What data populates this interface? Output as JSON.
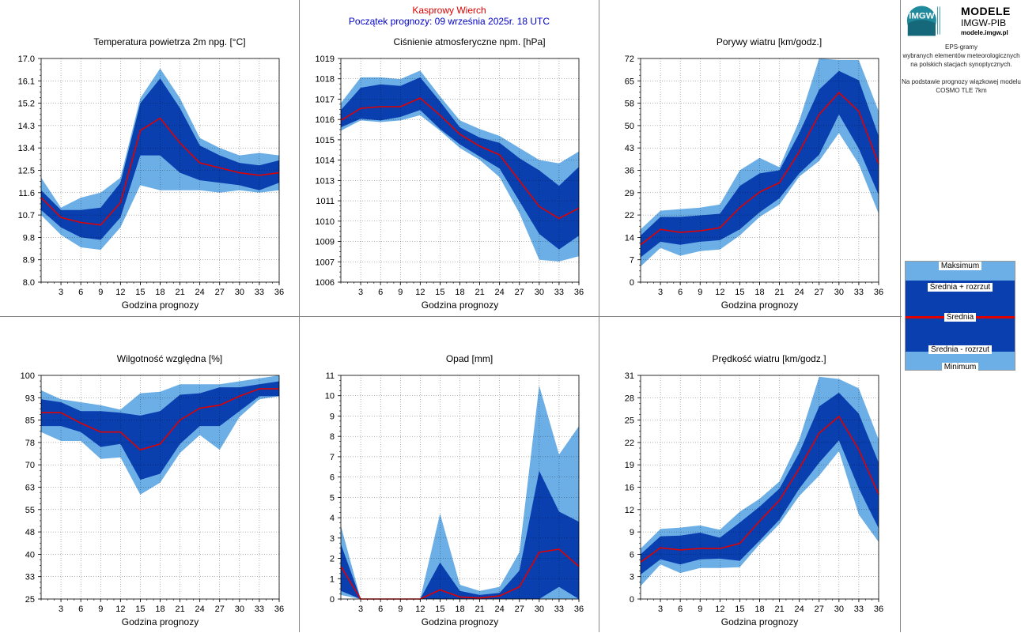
{
  "header": {
    "station": "Kasprowy Wierch",
    "forecast_start": "Początek prognozy: 09 września 2025r. 18 UTC"
  },
  "side": {
    "brand": "MODELE",
    "brand_sub": "IMGW-PIB",
    "url": "modele.imgw.pl",
    "logo_text": "IMGW",
    "desc1": "EPS-gramy",
    "desc2": "wybranych elementów meteorologicznych",
    "desc3": "na polskich stacjach  synoptycznych.",
    "desc4": "Na podstawie prognozy wiązkowej modelu",
    "desc5": "COSMO TLE 7km"
  },
  "legend": {
    "max": "Maksimum",
    "mean_plus": "Średnia + rozrzut",
    "mean": "Średnia",
    "mean_minus": "Średnia - rozrzut",
    "min": "Minimum"
  },
  "colors": {
    "outer_band": "#6caee6",
    "inner_band": "#0a3fb0",
    "mean_line": "#e00000",
    "header_station": "#e00000",
    "header_date": "#0000cc"
  },
  "chart_data": [
    {
      "type": "area",
      "title": "Temperatura powietrza 2m npg. [°C]",
      "xlabel": "Godzina prognozy",
      "x": [
        0,
        3,
        6,
        9,
        12,
        15,
        18,
        21,
        24,
        27,
        30,
        33,
        36
      ],
      "xticks": [
        "3",
        "6",
        "9",
        "12",
        "15",
        "18",
        "21",
        "24",
        "27",
        "30",
        "33",
        "36"
      ],
      "yticks": [
        "8.0",
        "8.9",
        "9.8",
        "10.7",
        "11.6",
        "12.5",
        "13.4",
        "14.3",
        "15.2",
        "16.1",
        "17.0"
      ],
      "ylim": [
        8.0,
        17.0
      ],
      "max": [
        12.2,
        11.0,
        11.4,
        11.6,
        12.2,
        15.4,
        16.6,
        15.4,
        13.8,
        13.4,
        13.1,
        13.2,
        13.1
      ],
      "mean_plus": [
        11.7,
        10.9,
        10.9,
        11.0,
        12.0,
        15.2,
        16.2,
        15.0,
        13.5,
        13.1,
        12.8,
        12.7,
        12.9
      ],
      "mean": [
        11.4,
        10.6,
        10.4,
        10.3,
        11.2,
        14.1,
        14.6,
        13.6,
        12.8,
        12.6,
        12.4,
        12.3,
        12.4
      ],
      "mean_minus": [
        10.9,
        10.2,
        9.8,
        9.7,
        10.6,
        13.1,
        13.1,
        12.4,
        12.1,
        12.0,
        11.9,
        11.7,
        12.0
      ],
      "min": [
        10.7,
        9.9,
        9.4,
        9.3,
        10.2,
        11.9,
        11.7,
        11.7,
        11.7,
        11.6,
        11.7,
        11.6,
        11.7
      ]
    },
    {
      "type": "area",
      "title": "Ciśnienie atmosferyczne npm. [hPa]",
      "xlabel": "Godzina prognozy",
      "x": [
        0,
        3,
        6,
        9,
        12,
        15,
        18,
        21,
        24,
        27,
        30,
        33,
        36
      ],
      "xticks": [
        "3",
        "6",
        "9",
        "12",
        "15",
        "18",
        "21",
        "24",
        "27",
        "30",
        "33",
        "36"
      ],
      "yticks": [
        "1006",
        "1007",
        "1009",
        "1010",
        "1011",
        "1013",
        "1014",
        "1015",
        "1016",
        "1017",
        "1018",
        "1019"
      ],
      "ylim": [
        1006,
        1019
      ],
      "max": [
        1016.4,
        1017.9,
        1017.9,
        1017.8,
        1018.3,
        1016.8,
        1015.4,
        1014.9,
        1014.5,
        1013.8,
        1013.1,
        1012.9,
        1013.6
      ],
      "mean_plus": [
        1016.0,
        1017.3,
        1017.5,
        1017.4,
        1017.9,
        1016.5,
        1015.0,
        1014.4,
        1014.1,
        1013.2,
        1012.5,
        1011.6,
        1012.7
      ],
      "mean": [
        1015.4,
        1016.1,
        1016.2,
        1016.2,
        1016.7,
        1015.7,
        1014.6,
        1013.9,
        1013.4,
        1011.9,
        1010.4,
        1009.7,
        1010.3
      ],
      "mean_minus": [
        1015.0,
        1015.5,
        1015.4,
        1015.6,
        1016.0,
        1014.9,
        1014.0,
        1013.3,
        1012.6,
        1010.7,
        1008.8,
        1007.9,
        1008.7
      ],
      "min": [
        1014.8,
        1015.4,
        1015.3,
        1015.4,
        1015.7,
        1014.8,
        1013.8,
        1013.1,
        1012.1,
        1010.0,
        1007.3,
        1007.2,
        1007.5
      ]
    },
    {
      "type": "area",
      "title": "Porywy wiatru [km/godz.]",
      "xlabel": "Godzina prognozy",
      "x": [
        0,
        3,
        6,
        9,
        12,
        15,
        18,
        21,
        24,
        27,
        30,
        33,
        36
      ],
      "xticks": [
        "3",
        "6",
        "9",
        "12",
        "15",
        "18",
        "21",
        "24",
        "27",
        "30",
        "33",
        "36"
      ],
      "yticks": [
        "0",
        "7",
        "14",
        "22",
        "29",
        "36",
        "43",
        "50",
        "58",
        "65",
        "72"
      ],
      "ylim": [
        0,
        72
      ],
      "max": [
        17,
        23,
        23.5,
        24,
        25,
        36,
        40,
        37,
        52,
        72,
        71.5,
        71.5,
        55
      ],
      "mean_plus": [
        15,
        21,
        21,
        21.5,
        22,
        31,
        35,
        36,
        48,
        62,
        68,
        65,
        47
      ],
      "mean": [
        12,
        17,
        16,
        16.5,
        17.5,
        24,
        29,
        32,
        42,
        54,
        61,
        55,
        38
      ],
      "mean_minus": [
        8,
        13,
        12,
        13,
        13.5,
        17,
        22.5,
        27,
        35,
        41,
        54,
        43,
        28
      ],
      "min": [
        5,
        11,
        8.5,
        10,
        10.5,
        15,
        21,
        25,
        34,
        39,
        48,
        38,
        22
      ]
    },
    {
      "type": "area",
      "title": "Wilgotność względna [%]",
      "xlabel": "Godzina prognozy",
      "x": [
        0,
        3,
        6,
        9,
        12,
        15,
        18,
        21,
        24,
        27,
        30,
        33,
        36
      ],
      "xticks": [
        "3",
        "6",
        "9",
        "12",
        "15",
        "18",
        "21",
        "24",
        "27",
        "30",
        "33",
        "36"
      ],
      "yticks": [
        "25",
        "33",
        "40",
        "48",
        "55",
        "63",
        "70",
        "78",
        "85",
        "93",
        "100"
      ],
      "ylim": [
        25,
        100
      ],
      "max": [
        95,
        92,
        91,
        90,
        88.5,
        94,
        94.5,
        97,
        97,
        97,
        98,
        99,
        100
      ],
      "mean_plus": [
        92,
        91,
        88,
        88,
        87.5,
        86.5,
        88,
        93.5,
        94,
        96,
        96,
        97,
        98
      ],
      "mean": [
        87.5,
        87.5,
        84,
        81,
        81,
        75,
        77,
        85,
        89,
        90,
        93,
        95.5,
        95.5
      ],
      "mean_minus": [
        83,
        83,
        81,
        76,
        77,
        65,
        67,
        77,
        83,
        83,
        88,
        93,
        93
      ],
      "min": [
        81,
        78,
        78,
        72,
        72.5,
        60,
        64,
        74,
        80,
        75,
        86,
        92,
        93
      ]
    },
    {
      "type": "area",
      "title": "Opad [mm]",
      "xlabel": "Godzina prognozy",
      "x": [
        0,
        3,
        6,
        9,
        12,
        15,
        18,
        21,
        24,
        27,
        30,
        33,
        36
      ],
      "xticks": [
        "3",
        "6",
        "9",
        "12",
        "15",
        "18",
        "21",
        "24",
        "27",
        "30",
        "33",
        "36"
      ],
      "yticks": [
        "0",
        "1",
        "2",
        "3",
        "4",
        "5",
        "6",
        "7",
        "8",
        "9",
        "10",
        "11"
      ],
      "ylim": [
        0,
        11
      ],
      "max": [
        3.6,
        0,
        0,
        0,
        0,
        4.2,
        0.7,
        0.4,
        0.6,
        2.3,
        10.5,
        7.1,
        8.5
      ],
      "mean_plus": [
        2.7,
        0,
        0,
        0,
        0,
        1.8,
        0.4,
        0.2,
        0.3,
        1.4,
        6.3,
        4.3,
        3.8
      ],
      "mean": [
        1.6,
        0,
        0,
        0,
        0,
        0.45,
        0.1,
        0.05,
        0.15,
        0.6,
        2.3,
        2.45,
        1.6
      ],
      "mean_minus": [
        0.4,
        0,
        0,
        0,
        0,
        0,
        0,
        0,
        0,
        0,
        0,
        0.6,
        0
      ],
      "min": [
        0.2,
        0,
        0,
        0,
        0,
        0,
        0,
        0,
        0,
        0,
        0,
        0,
        0
      ]
    },
    {
      "type": "area",
      "title": "Prędkość wiatru [km/godz.]",
      "xlabel": "Godzina prognozy",
      "x": [
        0,
        3,
        6,
        9,
        12,
        15,
        18,
        21,
        24,
        27,
        30,
        33,
        36
      ],
      "xticks": [
        "3",
        "6",
        "9",
        "12",
        "15",
        "18",
        "21",
        "24",
        "27",
        "30",
        "33",
        "36"
      ],
      "yticks": [
        "0",
        "3",
        "6",
        "9",
        "12",
        "16",
        "19",
        "22",
        "25",
        "28",
        "31"
      ],
      "ylim": [
        0,
        31
      ],
      "max": [
        7,
        9.7,
        9.9,
        10.2,
        9.6,
        12.1,
        13.9,
        16.3,
        22.1,
        30.8,
        30.5,
        29.2,
        22.1
      ],
      "mean_plus": [
        6.2,
        8.7,
        8.8,
        9.2,
        8.5,
        10.6,
        12.8,
        15.3,
        20.3,
        26.7,
        28.6,
        25.7,
        18.9
      ],
      "mean": [
        5.1,
        7.1,
        6.8,
        7.0,
        7.0,
        7.7,
        10.8,
        13.7,
        18.1,
        23.0,
        25.3,
        20.7,
        14.5
      ],
      "mean_minus": [
        3.4,
        5.5,
        4.8,
        5.5,
        5.6,
        5.3,
        8.1,
        11.0,
        15.3,
        18.9,
        22.0,
        15.3,
        9.8
      ],
      "min": [
        1.8,
        4.8,
        3.6,
        4.3,
        4.3,
        4.4,
        7.6,
        10.4,
        14.3,
        17.1,
        20.5,
        11.7,
        7.9
      ]
    }
  ]
}
